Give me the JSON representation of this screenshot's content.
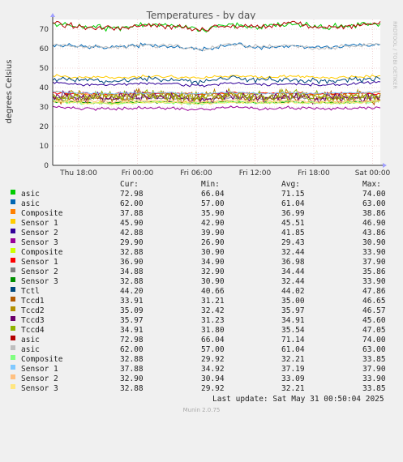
{
  "chart_data": {
    "type": "line",
    "title": "Temperatures - by day",
    "ylabel": "degrees Celsius",
    "side_label": "RRDTOOL / TOBI OETIKER",
    "ylim": [
      0,
      75
    ],
    "yticks": [
      0,
      10,
      20,
      30,
      40,
      50,
      60,
      70
    ],
    "xticks": [
      "Thu 18:00",
      "Fri 00:00",
      "Fri 06:00",
      "Fri 12:00",
      "Fri 18:00",
      "Sat 00:00"
    ],
    "grid": true,
    "legend_headers": {
      "cur": "Cur:",
      "min": "Min:",
      "avg": "Avg:",
      "max": "Max:"
    },
    "series": [
      {
        "name": "asic",
        "color": "#00cc00",
        "cur": "72.98",
        "min": "66.04",
        "avg": "71.15",
        "max": "74.00",
        "values": [
          72.98,
          71.2,
          70.5,
          72.1,
          71.8,
          69.8,
          72.4,
          71.0,
          73.5,
          70.6,
          71.9,
          72.98
        ]
      },
      {
        "name": "asic",
        "color": "#0066b3",
        "cur": "62.00",
        "min": "57.00",
        "avg": "61.04",
        "max": "63.00",
        "values": [
          62.0,
          61.0,
          60.5,
          61.8,
          61.2,
          59.5,
          62.3,
          60.8,
          61.6,
          60.2,
          61.4,
          62.0
        ]
      },
      {
        "name": "Composite",
        "color": "#ff8000",
        "cur": "37.88",
        "min": "35.90",
        "avg": "36.99",
        "max": "38.86",
        "values": [
          37.88,
          36.9,
          36.5,
          37.2,
          37.0,
          36.4,
          37.5,
          36.8,
          37.3,
          36.6,
          37.1,
          37.88
        ]
      },
      {
        "name": "Sensor 1",
        "color": "#ffcc00",
        "cur": "45.90",
        "min": "42.90",
        "avg": "45.51",
        "max": "46.90",
        "values": [
          45.9,
          45.3,
          44.9,
          45.8,
          45.6,
          44.8,
          46.1,
          45.2,
          45.9,
          45.0,
          45.5,
          45.9
        ]
      },
      {
        "name": "Sensor 2",
        "color": "#330099",
        "cur": "42.88",
        "min": "39.90",
        "avg": "41.85",
        "max": "43.86",
        "values": [
          42.88,
          41.6,
          41.2,
          42.3,
          41.9,
          41.0,
          42.5,
          41.5,
          42.1,
          41.3,
          41.8,
          42.88
        ]
      },
      {
        "name": "Sensor 3",
        "color": "#990099",
        "cur": "29.90",
        "min": "26.90",
        "avg": "29.43",
        "max": "30.90",
        "values": [
          29.9,
          29.2,
          28.9,
          29.6,
          29.4,
          28.8,
          29.8,
          29.1,
          29.7,
          29.0,
          29.3,
          29.9
        ]
      },
      {
        "name": "Composite",
        "color": "#ccff00",
        "cur": "32.88",
        "min": "30.90",
        "avg": "32.44",
        "max": "33.90",
        "values": [
          32.88,
          32.3,
          32.0,
          32.6,
          32.4,
          31.9,
          32.8,
          32.2,
          32.7,
          32.1,
          32.5,
          32.88
        ]
      },
      {
        "name": "Sensor 1",
        "color": "#ff0000",
        "cur": "36.90",
        "min": "34.90",
        "avg": "36.98",
        "max": "37.90",
        "values": [
          36.9,
          37.0,
          36.7,
          37.2,
          37.1,
          36.6,
          37.3,
          36.9,
          37.2,
          36.8,
          37.0,
          36.9
        ]
      },
      {
        "name": "Sensor 2",
        "color": "#808080",
        "cur": "34.88",
        "min": "32.90",
        "avg": "34.44",
        "max": "35.86",
        "values": [
          34.88,
          34.4,
          34.1,
          34.7,
          34.5,
          34.0,
          34.8,
          34.3,
          34.6,
          34.2,
          34.5,
          34.88
        ]
      },
      {
        "name": "Sensor 3",
        "color": "#008f00",
        "cur": "32.88",
        "min": "30.90",
        "avg": "32.44",
        "max": "33.90",
        "values": [
          32.88,
          32.4,
          32.1,
          32.6,
          32.5,
          32.0,
          32.7,
          32.3,
          32.6,
          32.2,
          32.4,
          32.88
        ]
      },
      {
        "name": "Tctl",
        "color": "#00487d",
        "cur": "44.20",
        "min": "40.66",
        "avg": "44.02",
        "max": "47.86",
        "values": [
          44.2,
          43.8,
          43.2,
          44.6,
          44.1,
          43.0,
          45.2,
          43.7,
          44.5,
          43.4,
          44.0,
          44.2
        ]
      },
      {
        "name": "Tccd1",
        "color": "#b35a00",
        "cur": "33.91",
        "min": "31.21",
        "avg": "35.00",
        "max": "46.65",
        "values": [
          33.91,
          35.2,
          34.6,
          36.1,
          35.0,
          34.2,
          35.8,
          34.9,
          35.4,
          34.5,
          35.1,
          33.91
        ]
      },
      {
        "name": "Tccd2",
        "color": "#b38f00",
        "cur": "35.09",
        "min": "32.42",
        "avg": "35.97",
        "max": "46.57",
        "values": [
          35.09,
          36.1,
          35.6,
          36.8,
          36.0,
          35.2,
          36.9,
          35.8,
          36.3,
          35.5,
          36.0,
          35.09
        ]
      },
      {
        "name": "Tccd3",
        "color": "#6b006b",
        "cur": "35.97",
        "min": "31.23",
        "avg": "34.91",
        "max": "45.60",
        "values": [
          35.97,
          34.9,
          34.3,
          35.6,
          35.0,
          34.1,
          35.7,
          34.7,
          35.3,
          34.4,
          34.9,
          35.97
        ]
      },
      {
        "name": "Tccd4",
        "color": "#8fb300",
        "cur": "34.91",
        "min": "31.80",
        "avg": "35.54",
        "max": "47.05",
        "values": [
          34.91,
          35.6,
          35.1,
          36.3,
          35.5,
          34.8,
          36.2,
          35.3,
          35.9,
          35.0,
          35.6,
          34.91
        ]
      },
      {
        "name": "asic",
        "color": "#b30000",
        "cur": "72.98",
        "min": "66.04",
        "avg": "71.14",
        "max": "74.00",
        "values": [
          72.98,
          71.1,
          70.4,
          72.0,
          71.7,
          69.7,
          72.3,
          70.9,
          73.4,
          70.5,
          71.8,
          72.98
        ]
      },
      {
        "name": "asic",
        "color": "#bebebe",
        "cur": "62.00",
        "min": "57.00",
        "avg": "61.04",
        "max": "63.00",
        "values": [
          62.0,
          61.0,
          60.5,
          61.8,
          61.2,
          59.5,
          62.3,
          60.8,
          61.6,
          60.2,
          61.4,
          62.0
        ]
      },
      {
        "name": "Composite",
        "color": "#80ff80",
        "cur": "32.88",
        "min": "29.92",
        "avg": "32.21",
        "max": "33.85",
        "values": [
          32.88,
          32.1,
          31.8,
          32.4,
          32.2,
          31.7,
          32.6,
          32.0,
          32.5,
          31.9,
          32.3,
          32.88
        ]
      },
      {
        "name": "Sensor 1",
        "color": "#80c9ff",
        "cur": "37.88",
        "min": "34.92",
        "avg": "37.19",
        "max": "37.90",
        "values": [
          37.88,
          37.1,
          36.9,
          37.4,
          37.2,
          36.8,
          37.5,
          37.0,
          37.3,
          36.9,
          37.2,
          37.88
        ]
      },
      {
        "name": "Sensor 2",
        "color": "#ffc080",
        "cur": "32.90",
        "min": "30.94",
        "avg": "33.09",
        "max": "33.90",
        "values": [
          32.9,
          33.0,
          32.8,
          33.3,
          33.1,
          32.7,
          33.4,
          32.9,
          33.2,
          32.8,
          33.1,
          32.9
        ]
      },
      {
        "name": "Sensor 3",
        "color": "#ffe680",
        "cur": "32.88",
        "min": "29.92",
        "avg": "32.21",
        "max": "33.85",
        "values": [
          32.88,
          32.1,
          31.8,
          32.4,
          32.2,
          31.7,
          32.6,
          32.0,
          32.5,
          31.9,
          32.3,
          32.88
        ]
      }
    ]
  },
  "footer": {
    "last_update": "Last update: Sat May 31 00:50:04 2025",
    "version": "Munin 2.0.75"
  }
}
